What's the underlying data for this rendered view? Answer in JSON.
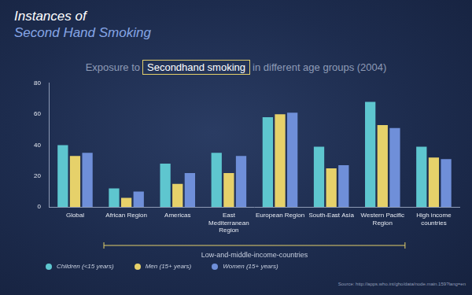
{
  "header": {
    "title": "Instances of",
    "subtitle": "Second Hand Smoking"
  },
  "source": "Source: http://apps.who.int/gho/data/node.main.159?lang=en",
  "chart_data": {
    "type": "bar",
    "title": {
      "before": "Exposure to",
      "highlight": "Secondhand smoking",
      "after": "in different age groups (2004)"
    },
    "categories": [
      "Global",
      "African Region",
      "Americas",
      "East Mediterranean Region",
      "European Region",
      "South-East Asia",
      "Western Pacific Region",
      "High income countries"
    ],
    "series": [
      {
        "name": "Children (<15 years)",
        "color": "#5ec6cf",
        "values": [
          40,
          12,
          28,
          35,
          58,
          39,
          68,
          39
        ]
      },
      {
        "name": "Men (15+ years)",
        "color": "#e6d16a",
        "values": [
          33,
          6,
          15,
          22,
          60,
          25,
          53,
          32
        ]
      },
      {
        "name": "Women (15+ years)",
        "color": "#6f8fd9",
        "values": [
          35,
          10,
          22,
          33,
          61,
          27,
          51,
          31
        ]
      }
    ],
    "annotations": [
      {
        "text": "Low-and-middle-income-countries",
        "from": "African Region",
        "to": "Western Pacific Region"
      }
    ],
    "ylim": [
      0,
      80
    ],
    "yticks": [
      0,
      20,
      40,
      60,
      80
    ],
    "grid": false,
    "legend": "bottom"
  }
}
